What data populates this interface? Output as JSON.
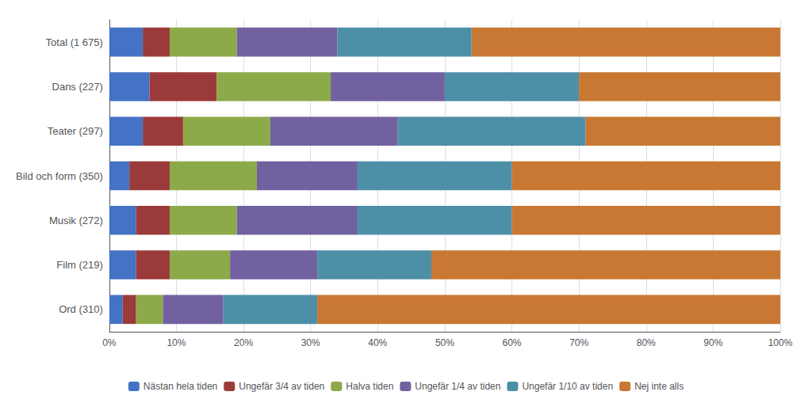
{
  "chart_data": {
    "type": "bar",
    "orientation": "horizontal",
    "stacked": true,
    "categories": [
      "Total (1 675)",
      "Dans (227)",
      "Teater (297)",
      "Bild och form (350)",
      "Musik (272)",
      "Film (219)",
      "Ord (310)"
    ],
    "series": [
      {
        "name": "Nästan hela tiden",
        "color": "#4472C4",
        "values": [
          5,
          6,
          5,
          3,
          4,
          4,
          2
        ]
      },
      {
        "name": "Ungefär 3/4 av tiden",
        "color": "#9B3A3A",
        "values": [
          4,
          10,
          6,
          6,
          5,
          5,
          2
        ]
      },
      {
        "name": "Halva tiden",
        "color": "#8DAA4A",
        "values": [
          10,
          17,
          13,
          13,
          10,
          9,
          4
        ]
      },
      {
        "name": "Ungefär 1/4 av tiden",
        "color": "#7161A0",
        "values": [
          15,
          17,
          19,
          15,
          18,
          13,
          9
        ]
      },
      {
        "name": "Ungefär 1/10 av tiden",
        "color": "#4E8FA8",
        "values": [
          20,
          20,
          28,
          23,
          23,
          17,
          14
        ]
      },
      {
        "name": "Nej inte alls",
        "color": "#C87832",
        "values": [
          46,
          30,
          29,
          40,
          40,
          52,
          69
        ]
      }
    ],
    "xlim": [
      0,
      100
    ],
    "xticks": [
      {
        "value": 0,
        "label": "0%"
      },
      {
        "value": 10,
        "label": "10%"
      },
      {
        "value": 20,
        "label": "20%"
      },
      {
        "value": 30,
        "label": "30%"
      },
      {
        "value": 40,
        "label": "40%"
      },
      {
        "value": 50,
        "label": "50%"
      },
      {
        "value": 60,
        "label": "60%"
      },
      {
        "value": 70,
        "label": "70%"
      },
      {
        "value": 80,
        "label": "80%"
      },
      {
        "value": 90,
        "label": "90%"
      },
      {
        "value": 100,
        "label": "100%"
      }
    ],
    "grid": true,
    "legend": "bottom"
  }
}
